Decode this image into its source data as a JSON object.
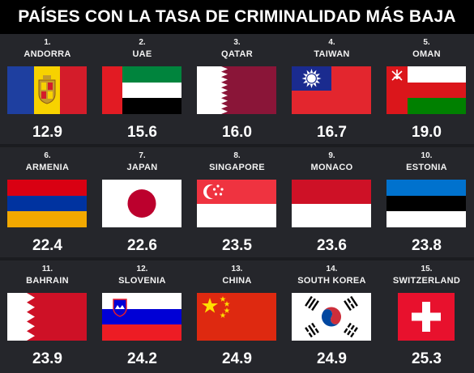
{
  "title": "PAÍSES CON LA TASA DE CRIMINALIDAD MÁS BAJA",
  "countries": [
    {
      "rank": "1.",
      "name": "ANDORRA",
      "value": "12.9",
      "flag_icon": "andorra-flag-icon"
    },
    {
      "rank": "2.",
      "name": "UAE",
      "value": "15.6",
      "flag_icon": "uae-flag-icon"
    },
    {
      "rank": "3.",
      "name": "QATAR",
      "value": "16.0",
      "flag_icon": "qatar-flag-icon"
    },
    {
      "rank": "4.",
      "name": "TAIWAN",
      "value": "16.7",
      "flag_icon": "taiwan-flag-icon"
    },
    {
      "rank": "5.",
      "name": "OMAN",
      "value": "19.0",
      "flag_icon": "oman-flag-icon"
    },
    {
      "rank": "6.",
      "name": "ARMENIA",
      "value": "22.4",
      "flag_icon": "armenia-flag-icon"
    },
    {
      "rank": "7.",
      "name": "JAPAN",
      "value": "22.6",
      "flag_icon": "japan-flag-icon"
    },
    {
      "rank": "8.",
      "name": "SINGAPORE",
      "value": "23.5",
      "flag_icon": "singapore-flag-icon"
    },
    {
      "rank": "9.",
      "name": "MONACO",
      "value": "23.6",
      "flag_icon": "monaco-flag-icon"
    },
    {
      "rank": "10.",
      "name": "ESTONIA",
      "value": "23.8",
      "flag_icon": "estonia-flag-icon"
    },
    {
      "rank": "11.",
      "name": "BAHRAIN",
      "value": "23.9",
      "flag_icon": "bahrain-flag-icon"
    },
    {
      "rank": "12.",
      "name": "SLOVENIA",
      "value": "24.2",
      "flag_icon": "slovenia-flag-icon"
    },
    {
      "rank": "13.",
      "name": "CHINA",
      "value": "24.9",
      "flag_icon": "china-flag-icon"
    },
    {
      "rank": "14.",
      "name": "SOUTH KOREA",
      "value": "24.9",
      "flag_icon": "south-korea-flag-icon"
    },
    {
      "rank": "15.",
      "name": "SWITZERLAND",
      "value": "25.3",
      "flag_icon": "switzerland-flag-icon"
    }
  ]
}
